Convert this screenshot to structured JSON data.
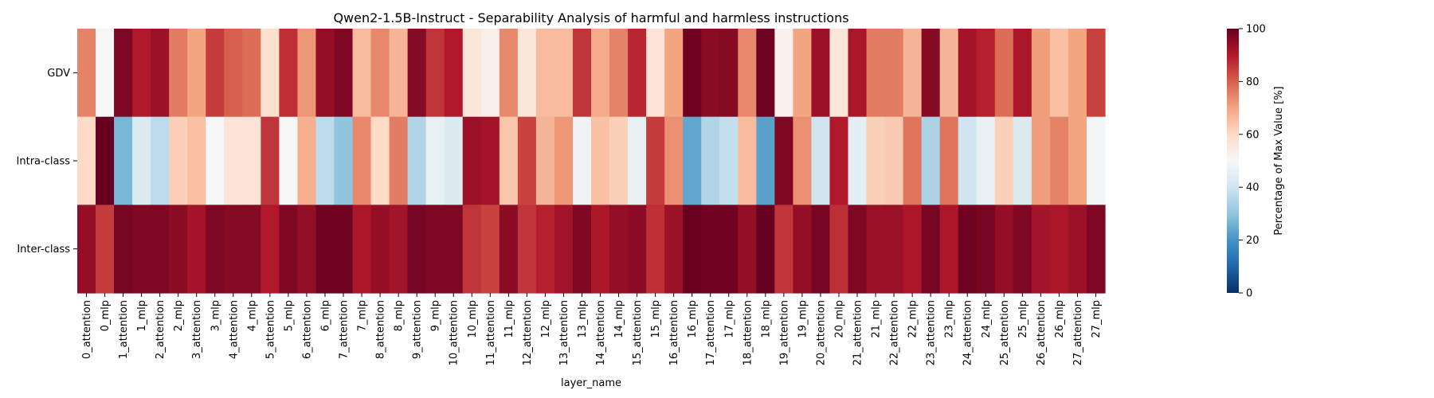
{
  "chart_data": {
    "type": "heatmap",
    "title": "Qwen2-1.5B-Instruct - Separability Analysis of harmful and harmless instructions",
    "xlabel": "layer_name",
    "ylabel": "",
    "rows": [
      "GDV",
      "Intra-class",
      "Inter-class"
    ],
    "columns": [
      "0_attention",
      "0_mlp",
      "1_attention",
      "1_mlp",
      "2_attention",
      "2_mlp",
      "3_attention",
      "3_mlp",
      "4_attention",
      "4_mlp",
      "5_attention",
      "5_mlp",
      "6_attention",
      "6_mlp",
      "7_attention",
      "7_mlp",
      "8_attention",
      "8_mlp",
      "9_attention",
      "9_mlp",
      "10_attention",
      "10_mlp",
      "11_attention",
      "11_mlp",
      "12_attention",
      "12_mlp",
      "13_attention",
      "13_mlp",
      "14_attention",
      "14_mlp",
      "15_attention",
      "15_mlp",
      "16_attention",
      "16_mlp",
      "17_attention",
      "17_mlp",
      "18_attention",
      "18_mlp",
      "19_attention",
      "19_mlp",
      "20_attention",
      "20_mlp",
      "21_attention",
      "21_mlp",
      "22_attention",
      "22_mlp",
      "23_attention",
      "23_mlp",
      "24_attention",
      "24_mlp",
      "25_attention",
      "25_mlp",
      "26_attention",
      "26_mlp",
      "27_attention",
      "27_mlp"
    ],
    "values": [
      [
        75,
        50,
        97,
        90,
        93,
        76,
        70,
        85,
        80,
        78,
        58,
        87,
        72,
        94,
        97,
        66,
        74,
        67,
        96,
        86,
        90,
        56,
        53,
        74,
        56,
        66,
        66,
        86,
        69,
        75,
        88,
        57,
        70,
        99,
        95,
        96,
        74,
        99,
        52,
        70,
        93,
        56,
        91,
        76,
        76,
        67,
        96,
        67,
        92,
        89,
        78,
        91,
        71,
        65,
        70,
        84
      ],
      [
        60,
        100,
        27,
        43,
        37,
        62,
        65,
        50,
        57,
        57,
        86,
        50,
        68,
        37,
        30,
        74,
        60,
        76,
        35,
        46,
        43,
        93,
        92,
        64,
        84,
        67,
        72,
        48,
        65,
        62,
        46,
        85,
        73,
        24,
        35,
        38,
        66,
        23,
        97,
        73,
        40,
        90,
        45,
        62,
        63,
        77,
        34,
        77,
        40,
        46,
        62,
        43,
        71,
        75,
        70,
        49
      ],
      [
        94,
        85,
        98,
        97,
        97,
        95,
        92,
        97,
        96,
        96,
        90,
        97,
        94,
        99,
        99,
        91,
        94,
        92,
        98,
        97,
        97,
        86,
        84,
        95,
        86,
        89,
        92,
        97,
        91,
        94,
        95,
        87,
        93,
        100,
        99,
        99,
        94,
        100,
        86,
        94,
        98,
        87,
        97,
        93,
        93,
        91,
        98,
        91,
        99,
        98,
        94,
        97,
        92,
        91,
        93,
        97
      ]
    ],
    "vmin": 0,
    "vmax": 100,
    "colormap": "RdBu_r",
    "colorbar": {
      "label": "Percentage of Max Value [%]",
      "ticks": [
        "0",
        "20",
        "40",
        "60",
        "80",
        "100"
      ]
    },
    "legend": "colorbar-right",
    "grid": false
  }
}
